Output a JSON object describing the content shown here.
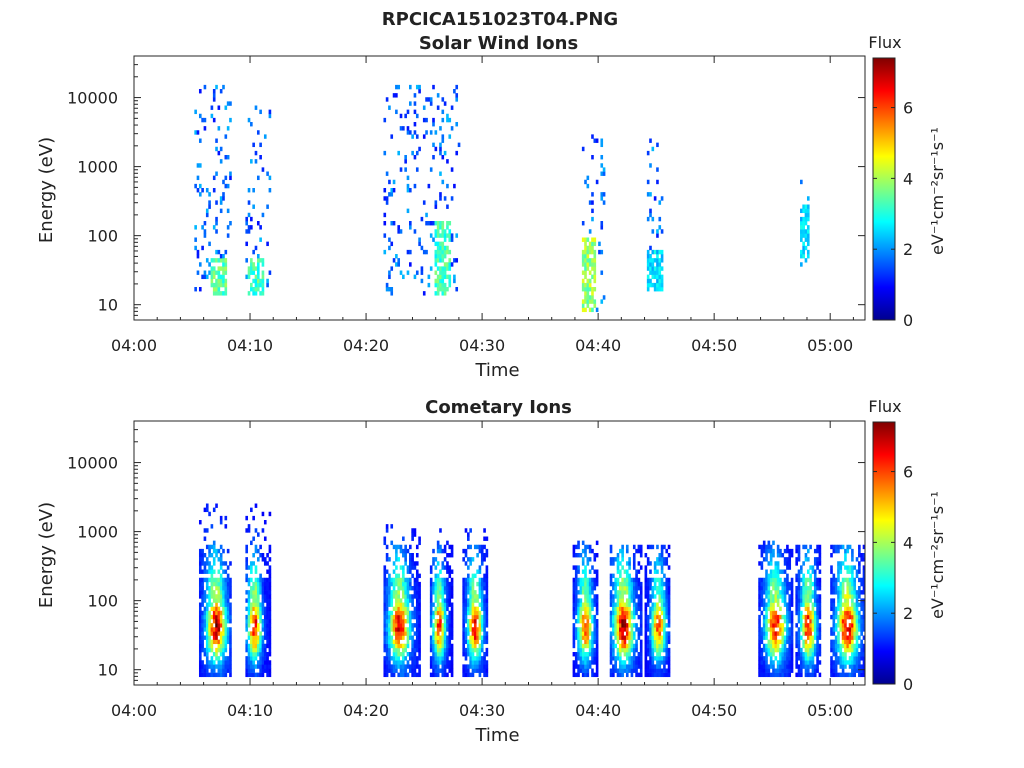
{
  "figure": {
    "title": "RPCICA151023T04.PNG"
  },
  "chart_data": [
    {
      "type": "heatmap",
      "title": "Solar Wind Ions",
      "xlabel": "Time",
      "ylabel": "Energy (eV)",
      "x_ticks": [
        "04:00",
        "04:10",
        "04:20",
        "04:30",
        "04:40",
        "04:50",
        "05:00"
      ],
      "x_range_minutes": [
        0,
        63
      ],
      "y_scale": "log",
      "y_ticks": [
        10,
        100,
        1000,
        10000
      ],
      "y_tick_labels": [
        "10",
        "100",
        "1000",
        "10000"
      ],
      "y_range": [
        6,
        40000
      ],
      "colorbar": {
        "title": "Flux",
        "label": "eV⁻¹cm⁻²sr⁻¹s⁻¹",
        "range": [
          0,
          7.4
        ],
        "ticks": [
          "0",
          "2",
          "4",
          "6"
        ],
        "colormap": "jet"
      },
      "bursts": [
        {
          "t_start": 5.2,
          "t_end": 8.4,
          "e_low": 12,
          "e_high": 15000,
          "peak": 4.0,
          "core_high": 45,
          "core_t": 7.2
        },
        {
          "t_start": 9.6,
          "t_end": 11.6,
          "e_low": 12,
          "e_high": 8000,
          "peak": 3.8,
          "core_high": 45,
          "core_t": 10.3
        },
        {
          "t_start": 21.5,
          "t_end": 28.0,
          "e_low": 12,
          "e_high": 14000,
          "peak": 3.8,
          "core_high": 150,
          "core_t": 26.5
        },
        {
          "t_start": 38.6,
          "t_end": 40.6,
          "e_low": 7,
          "e_high": 3000,
          "peak": 4.6,
          "core_high": 90,
          "core_t": 39.0
        },
        {
          "t_start": 44.2,
          "t_end": 45.6,
          "e_low": 15,
          "e_high": 2500,
          "peak": 3.0,
          "core_high": 60,
          "core_t": 44.8
        },
        {
          "t_start": 57.4,
          "t_end": 58.2,
          "e_low": 35,
          "e_high": 600,
          "peak": 3.0,
          "core_high": 250,
          "core_t": 57.8
        }
      ]
    },
    {
      "type": "heatmap",
      "title": "Cometary Ions",
      "xlabel": "Time",
      "ylabel": "Energy (eV)",
      "x_ticks": [
        "04:00",
        "04:10",
        "04:20",
        "04:30",
        "04:40",
        "04:50",
        "05:00"
      ],
      "x_range_minutes": [
        0,
        63
      ],
      "y_scale": "log",
      "y_ticks": [
        10,
        100,
        1000,
        10000
      ],
      "y_tick_labels": [
        "10",
        "100",
        "1000",
        "10000"
      ],
      "y_range": [
        6,
        40000
      ],
      "colorbar": {
        "title": "Flux",
        "label": "eV⁻¹cm⁻²sr⁻¹s⁻¹",
        "range": [
          0,
          7.4
        ],
        "ticks": [
          "0",
          "2",
          "4",
          "6"
        ],
        "colormap": "jet"
      },
      "bursts": [
        {
          "t_start": 5.6,
          "t_end": 8.4,
          "e_low": 7,
          "e_high": 2500,
          "peak": 7.2,
          "core_t": 7.0
        },
        {
          "t_start": 9.6,
          "t_end": 11.6,
          "e_low": 7,
          "e_high": 2500,
          "peak": 6.6,
          "core_t": 10.3
        },
        {
          "t_start": 21.5,
          "t_end": 24.5,
          "e_low": 7,
          "e_high": 1200,
          "peak": 7.0,
          "core_t": 22.8
        },
        {
          "t_start": 25.5,
          "t_end": 27.4,
          "e_low": 7,
          "e_high": 1000,
          "peak": 6.2,
          "core_t": 26.2
        },
        {
          "t_start": 28.3,
          "t_end": 30.4,
          "e_low": 7,
          "e_high": 1000,
          "peak": 6.8,
          "core_t": 29.3
        },
        {
          "t_start": 37.8,
          "t_end": 40.0,
          "e_low": 7,
          "e_high": 700,
          "peak": 6.2,
          "core_t": 38.8
        },
        {
          "t_start": 41.0,
          "t_end": 43.8,
          "e_low": 7,
          "e_high": 600,
          "peak": 7.4,
          "core_t": 42.1
        },
        {
          "t_start": 44.0,
          "t_end": 46.2,
          "e_low": 7,
          "e_high": 600,
          "peak": 6.0,
          "core_t": 45.1
        },
        {
          "t_start": 53.8,
          "t_end": 56.8,
          "e_low": 7,
          "e_high": 700,
          "peak": 6.6,
          "core_t": 55.2
        },
        {
          "t_start": 57.0,
          "t_end": 59.2,
          "e_low": 7,
          "e_high": 700,
          "peak": 6.6,
          "core_t": 58.0
        },
        {
          "t_start": 60.0,
          "t_end": 63.0,
          "e_low": 7,
          "e_high": 600,
          "peak": 7.2,
          "core_t": 61.4
        }
      ]
    }
  ]
}
